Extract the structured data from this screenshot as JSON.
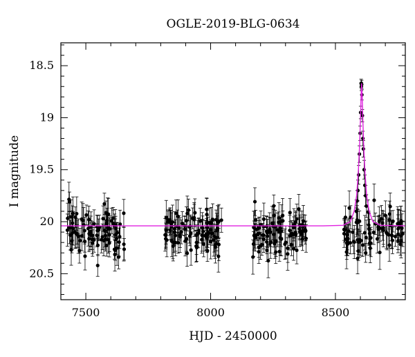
{
  "chart_data": {
    "type": "scatter",
    "title": "OGLE-2019-BLG-0634",
    "xlabel": "HJD - 2450000",
    "ylabel": "I magnitude",
    "xlim": [
      7400,
      8780
    ],
    "ylim": [
      20.75,
      18.28
    ],
    "y_axis_inverted": true,
    "grid": false,
    "legend": "none",
    "x_ticks": [
      7500,
      8000,
      8500
    ],
    "x_tick_labels": [
      "7500",
      "8000",
      "8500"
    ],
    "y_ticks": [
      18.5,
      19,
      19.5,
      20,
      20.5
    ],
    "y_tick_labels": [
      "18.5",
      "19",
      "19.5",
      "20",
      "20.5"
    ],
    "colors": {
      "points": "#000000",
      "model": "#e020e0",
      "frame": "#000000"
    },
    "model": {
      "name": "",
      "baseline": 20.04,
      "t0": 8605,
      "peak": 18.67,
      "samples": [
        [
          7400,
          20.04
        ],
        [
          8450,
          20.04
        ],
        [
          8530,
          20.035
        ],
        [
          8560,
          20.0
        ],
        [
          8575,
          19.9
        ],
        [
          8585,
          19.75
        ],
        [
          8592,
          19.5
        ],
        [
          8597,
          19.25
        ],
        [
          8601,
          18.95
        ],
        [
          8603,
          18.78
        ],
        [
          8605,
          18.67
        ],
        [
          8607,
          18.78
        ],
        [
          8609,
          18.95
        ],
        [
          8613,
          19.25
        ],
        [
          8618,
          19.5
        ],
        [
          8625,
          19.75
        ],
        [
          8635,
          19.9
        ],
        [
          8650,
          20.0
        ],
        [
          8680,
          20.035
        ],
        [
          8780,
          20.04
        ]
      ]
    },
    "observing_seasons": [
      {
        "start": 7425,
        "end": 7655,
        "mean": 20.08,
        "scatter": 0.2,
        "error": 0.13,
        "n": 90
      },
      {
        "start": 7805,
        "end": 8045,
        "mean": 20.08,
        "scatter": 0.18,
        "error": 0.13,
        "n": 95
      },
      {
        "start": 8165,
        "end": 8385,
        "mean": 20.1,
        "scatter": 0.18,
        "error": 0.13,
        "n": 95
      },
      {
        "start": 8530,
        "end": 8770,
        "mean": 20.1,
        "scatter": 0.18,
        "error": 0.13,
        "n": 85
      }
    ],
    "peak_points": [
      {
        "x": 8603,
        "y": 18.67,
        "err": 0.04
      },
      {
        "x": 8604,
        "y": 18.7,
        "err": 0.04
      },
      {
        "x": 8605,
        "y": 18.68,
        "err": 0.04
      },
      {
        "x": 8606,
        "y": 18.78,
        "err": 0.05
      },
      {
        "x": 8601,
        "y": 18.95,
        "err": 0.06
      },
      {
        "x": 8608,
        "y": 18.98,
        "err": 0.06
      },
      {
        "x": 8599,
        "y": 19.15,
        "err": 0.07
      },
      {
        "x": 8610,
        "y": 19.2,
        "err": 0.07
      },
      {
        "x": 8596,
        "y": 19.35,
        "err": 0.08
      },
      {
        "x": 8612,
        "y": 19.3,
        "err": 0.08
      },
      {
        "x": 8593,
        "y": 19.55,
        "err": 0.09
      },
      {
        "x": 8615,
        "y": 19.5,
        "err": 0.09
      },
      {
        "x": 8590,
        "y": 19.7,
        "err": 0.1
      },
      {
        "x": 8618,
        "y": 19.65,
        "err": 0.1
      },
      {
        "x": 8587,
        "y": 19.8,
        "err": 0.1
      },
      {
        "x": 8621,
        "y": 19.75,
        "err": 0.1
      },
      {
        "x": 8624,
        "y": 19.85,
        "err": 0.11
      },
      {
        "x": 8584,
        "y": 19.9,
        "err": 0.11
      }
    ]
  }
}
